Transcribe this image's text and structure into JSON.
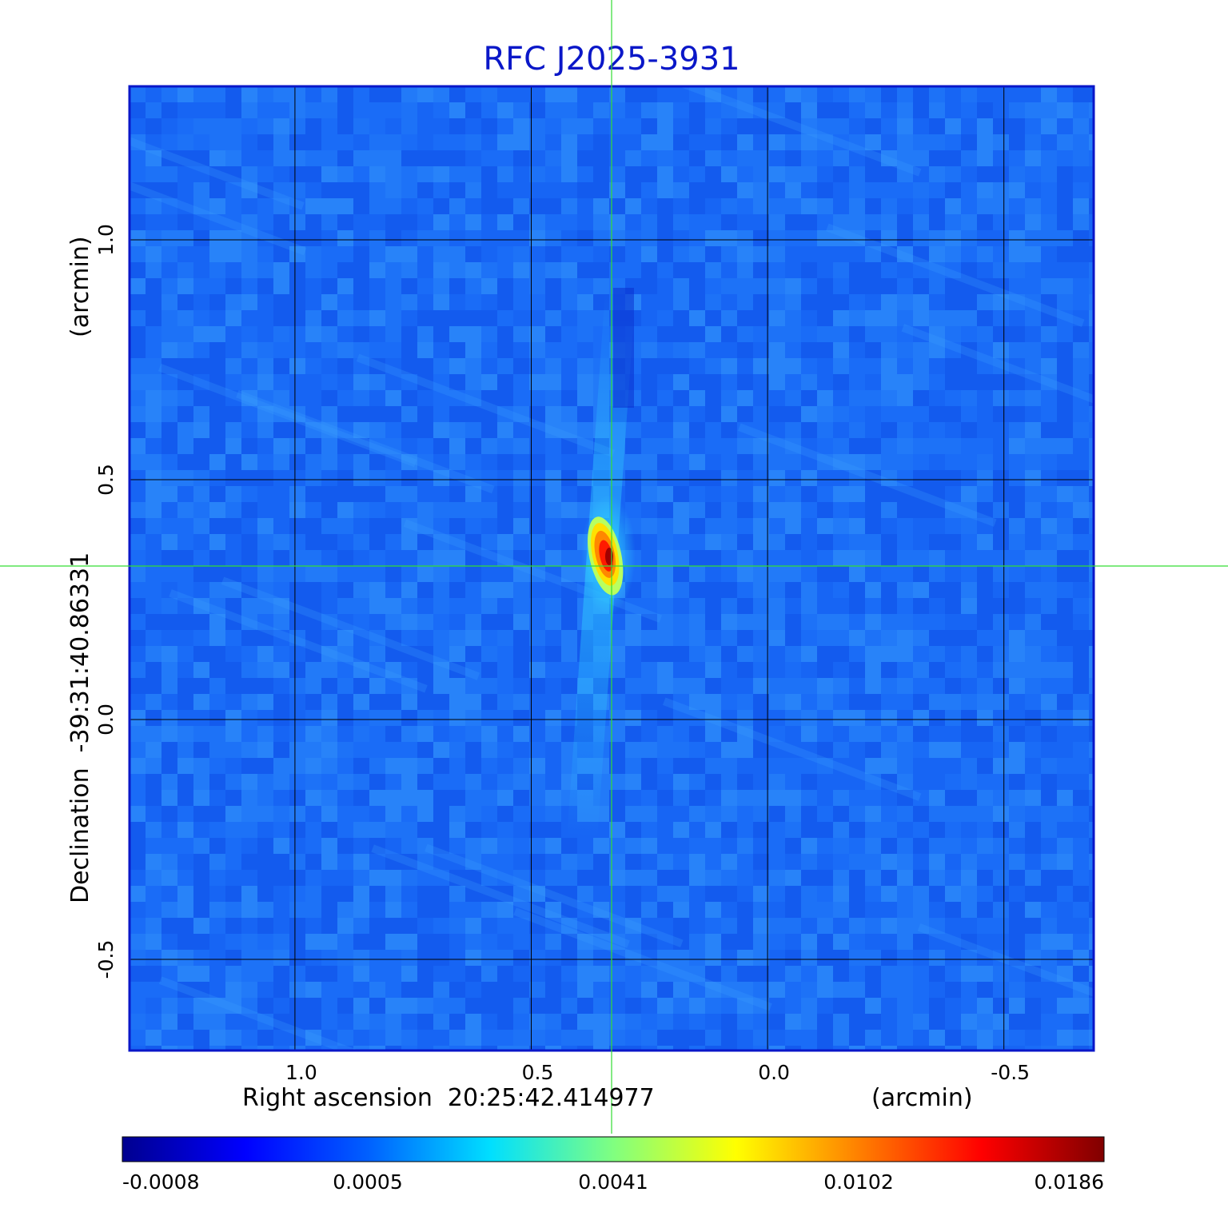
{
  "chart_data": {
    "type": "heatmap",
    "title": "RFC J2025-3931",
    "xlabel": "Right ascension  20:25:42.414977",
    "xunit": "(arcmin)",
    "ylabel": "Declination  -39:31:40.86331",
    "yunit": "(arcmin)",
    "x_ticks": [
      "1.0",
      "0.5",
      "0.0",
      "-0.5"
    ],
    "y_ticks": [
      "1.0",
      "0.5",
      "0.0",
      "-0.5"
    ],
    "x_tick_values": [
      1.0,
      0.5,
      0.0,
      -0.5
    ],
    "y_tick_values": [
      1.0,
      0.5,
      0.0,
      -0.5
    ],
    "xlim": [
      1.35,
      -0.69
    ],
    "ylim": [
      -0.69,
      1.32
    ],
    "grid": true,
    "crosshair": {
      "x": 0.33,
      "y": 0.32
    },
    "peak": {
      "x": 0.33,
      "y": 0.32,
      "value": 0.0186
    },
    "colormap": "jet",
    "colorbar_ticks": [
      "-0.0008",
      "0.0005",
      "0.0041",
      "0.0102",
      "0.0186"
    ],
    "colorbar_range": [
      -0.0008,
      0.0186
    ]
  },
  "colors": {
    "title": "#0a17c8",
    "frame": "#0a17c8",
    "crosshair": "#33dd33",
    "grid": "#000000",
    "background_noise": "#1a6cf5"
  }
}
